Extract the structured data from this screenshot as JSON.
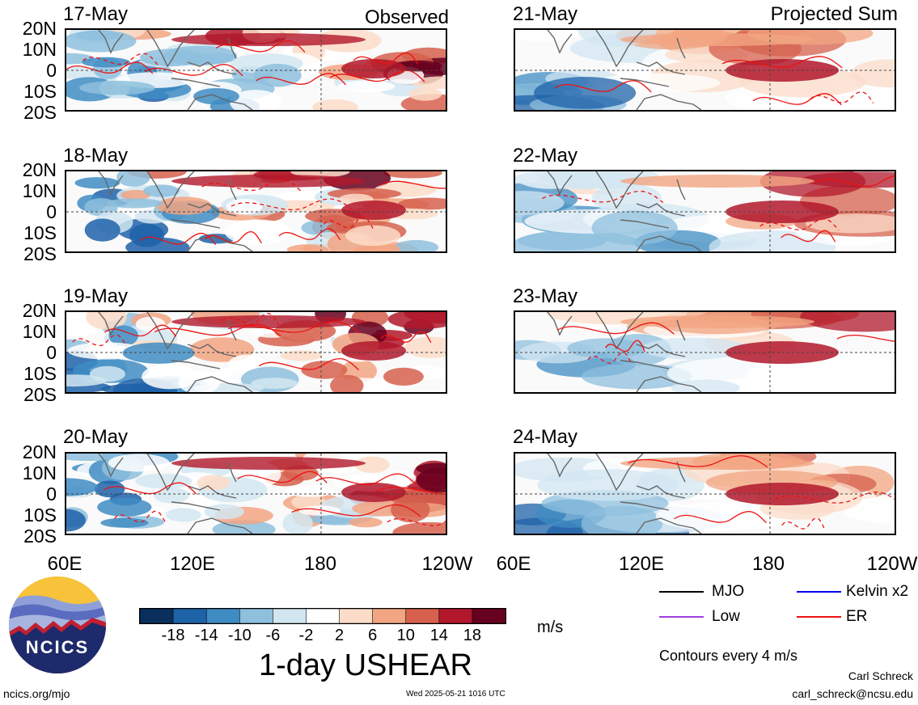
{
  "panels": [
    {
      "date": "17-May",
      "label": "Observed"
    },
    {
      "date": "18-May",
      "label": ""
    },
    {
      "date": "19-May",
      "label": ""
    },
    {
      "date": "20-May",
      "label": ""
    },
    {
      "date": "21-May",
      "label": "Projected Sum"
    },
    {
      "date": "22-May",
      "label": ""
    },
    {
      "date": "23-May",
      "label": ""
    },
    {
      "date": "24-May",
      "label": ""
    }
  ],
  "lat_labels": [
    "20N",
    "10N",
    "0",
    "10S",
    "20S"
  ],
  "lon_labels": [
    "60E",
    "120E",
    "180",
    "120W"
  ],
  "colorbar": {
    "labels": [
      "-18",
      "-14",
      "-10",
      "-6",
      "-2",
      "2",
      "6",
      "10",
      "14",
      "18"
    ],
    "colors": [
      "#0a2f5c",
      "#1e62a8",
      "#3f8cc3",
      "#8ebfdd",
      "#d2e6f1",
      "#ffffff",
      "#fbdcc8",
      "#f2a582",
      "#d6604d",
      "#b2182b",
      "#67001f"
    ],
    "units": "m/s"
  },
  "title": "1-day USHEAR",
  "legend": {
    "items": [
      {
        "label": "MJO",
        "color": "#000000"
      },
      {
        "label": "Kelvin x2",
        "color": "#0000ee"
      },
      {
        "label": "Low",
        "color": "#a040e0"
      },
      {
        "label": "ER",
        "color": "#ee1111"
      }
    ],
    "contour_note": "Contours every 4 m/s"
  },
  "logo_text": "NCICS",
  "footer": {
    "url": "ncics.org/mjo",
    "timestamp": "Wed 2025-05-21 1016 UTC",
    "author": "Carl Schreck",
    "email": "carl_schreck@ncsu.edu"
  }
}
